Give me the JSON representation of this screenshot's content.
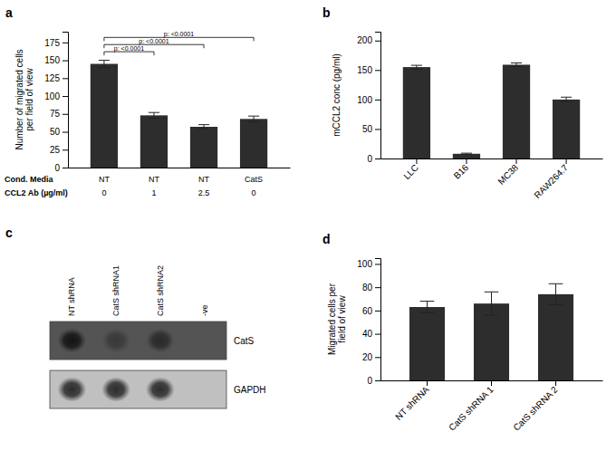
{
  "chart_data": [
    {
      "type": "bar",
      "title": "a",
      "ylabel": "Number of migrated cells\nper field of view",
      "values": [
        145,
        73,
        57,
        68
      ],
      "errors": [
        5,
        4,
        3,
        4
      ],
      "color": "#2d2d2d",
      "ylim": [
        0,
        190
      ],
      "yticks": [
        0,
        25,
        50,
        75,
        100,
        125,
        150,
        175
      ],
      "table": [
        {
          "label": "Cond. Media",
          "values": [
            "NT",
            "NT",
            "NT",
            "CatS"
          ]
        },
        {
          "label": "CCL2 Ab (µg/ml)",
          "values": [
            "0",
            "1",
            "2.5",
            "0"
          ]
        }
      ],
      "annotations": [
        {
          "x1": 0,
          "x2": 1,
          "y": 162,
          "text": "p: <0.0001"
        },
        {
          "x1": 0,
          "x2": 2,
          "y": 172,
          "text": "p: <0.0001"
        },
        {
          "x1": 0,
          "x2": 3,
          "y": 182,
          "text": "p: <0.0001"
        }
      ]
    },
    {
      "type": "bar",
      "title": "b",
      "ylabel": "mCCL2 conc (pg/ml)",
      "categories": [
        "LLC",
        "B16",
        "MC38",
        "RAW264.7"
      ],
      "values": [
        155,
        8,
        159,
        100
      ],
      "errors": [
        3,
        1,
        3,
        4
      ],
      "color": "#2d2d2d",
      "ylim": [
        0,
        215
      ],
      "yticks": [
        0,
        50,
        100,
        150,
        200
      ]
    },
    {
      "type": "blot",
      "title": "c",
      "categories": [
        "NT shRNA",
        "CatS shRNA1",
        "CatS shRNA2",
        "-ve"
      ],
      "series": [
        {
          "name": "CatS",
          "color": "#545454",
          "values": [
            0.92,
            0.38,
            0.6,
            0.0
          ]
        },
        {
          "name": "GAPDH",
          "color": "#c0c0c0",
          "values": [
            0.82,
            0.82,
            0.82,
            0.0
          ]
        }
      ]
    },
    {
      "type": "bar",
      "title": "d",
      "ylabel": "Migrated cells per\nfield of view",
      "categories": [
        "NT shRNA",
        "CatS shRNA 1",
        "CatS shRNA 2"
      ],
      "values": [
        63,
        66,
        74
      ],
      "errors": [
        5,
        10,
        9
      ],
      "color": "#2d2d2d",
      "ylim": [
        0,
        105
      ],
      "yticks": [
        0,
        20,
        40,
        60,
        80,
        100
      ]
    }
  ]
}
